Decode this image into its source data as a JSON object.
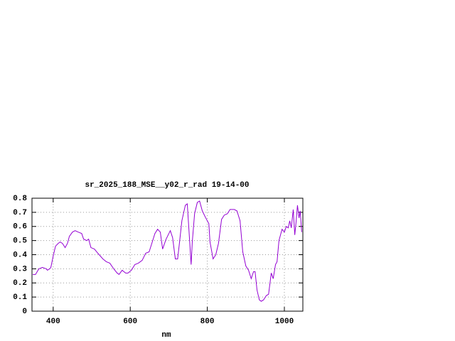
{
  "chart_data": {
    "type": "line",
    "title": "sr_2025_188_MSE__y02_r_rad 19-14-00",
    "x_label": "nm",
    "x": [
      347,
      354,
      363,
      372,
      382,
      385,
      391,
      394,
      400,
      406,
      413,
      418,
      424,
      431,
      437,
      442,
      450,
      457,
      465,
      474,
      479,
      487,
      492,
      498,
      507,
      516,
      529,
      538,
      547,
      557,
      566,
      571,
      579,
      588,
      594,
      603,
      612,
      621,
      631,
      640,
      649,
      656,
      664,
      671,
      678,
      684,
      693,
      704,
      710,
      717,
      723,
      728,
      734,
      743,
      748,
      752,
      758,
      761,
      767,
      774,
      780,
      787,
      796,
      804,
      807,
      815,
      822,
      829,
      837,
      844,
      852,
      859,
      870,
      877,
      885,
      892,
      900,
      907,
      914,
      920,
      924,
      929,
      935,
      940,
      946,
      953,
      959,
      966,
      971,
      977,
      981,
      986,
      994,
      1000,
      1005,
      1010,
      1014,
      1018,
      1023,
      1027,
      1030,
      1034,
      1038,
      1041,
      1045
    ],
    "series": [
      {
        "color": "#9400d3",
        "values": [
          0.26,
          0.26,
          0.3,
          0.31,
          0.3,
          0.29,
          0.3,
          0.31,
          0.39,
          0.46,
          0.48,
          0.49,
          0.48,
          0.45,
          0.48,
          0.53,
          0.56,
          0.57,
          0.56,
          0.55,
          0.51,
          0.5,
          0.51,
          0.45,
          0.44,
          0.41,
          0.37,
          0.35,
          0.34,
          0.3,
          0.27,
          0.26,
          0.29,
          0.27,
          0.27,
          0.29,
          0.33,
          0.34,
          0.36,
          0.41,
          0.42,
          0.48,
          0.55,
          0.58,
          0.56,
          0.44,
          0.51,
          0.57,
          0.52,
          0.37,
          0.37,
          0.49,
          0.64,
          0.75,
          0.76,
          0.59,
          0.33,
          0.49,
          0.69,
          0.77,
          0.78,
          0.71,
          0.66,
          0.62,
          0.49,
          0.37,
          0.4,
          0.48,
          0.65,
          0.68,
          0.69,
          0.72,
          0.72,
          0.71,
          0.64,
          0.42,
          0.32,
          0.29,
          0.23,
          0.28,
          0.28,
          0.15,
          0.08,
          0.07,
          0.08,
          0.11,
          0.12,
          0.27,
          0.23,
          0.33,
          0.35,
          0.5,
          0.58,
          0.56,
          0.6,
          0.59,
          0.64,
          0.59,
          0.72,
          0.54,
          0.62,
          0.75,
          0.66,
          0.71,
          0.56
        ]
      }
    ],
    "xlim": [
      345,
      1048
    ],
    "xticks": [
      400,
      600,
      800,
      1000
    ],
    "ylim": [
      0,
      0.8
    ],
    "yticks": [
      0,
      0.1,
      0.2,
      0.3,
      0.4,
      0.5,
      0.6,
      0.7,
      0.8
    ],
    "grid": true
  }
}
